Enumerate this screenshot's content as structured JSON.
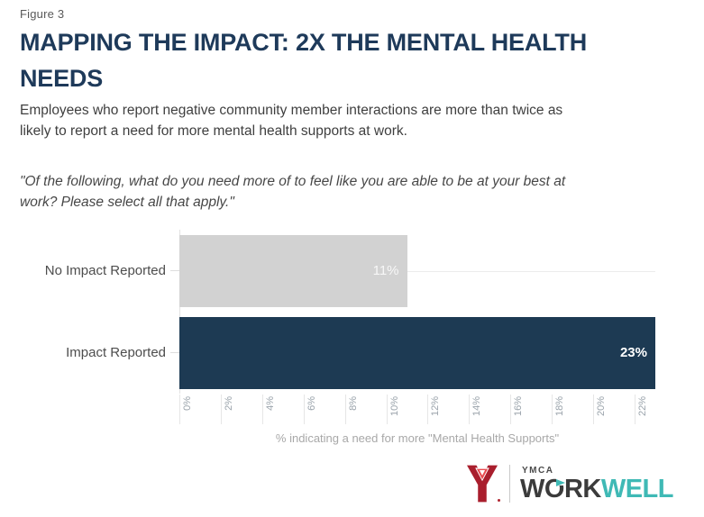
{
  "header": {
    "figure_label": "Figure 3",
    "title": "MAPPING THE IMPACT: 2X THE MENTAL HEALTH\nNEEDS",
    "subtitle": "Employees who report negative community member interactions are more than twice as\nlikely to report a need for more mental health supports at work.",
    "survey_question": "\"Of the following, what do you need more of to feel like you are able to be at your best at\nwork? Please select all that apply.\""
  },
  "chart_data": {
    "type": "bar",
    "orientation": "horizontal",
    "categories": [
      "No Impact Reported",
      "Impact Reported"
    ],
    "values": [
      11,
      23
    ],
    "bars": [
      {
        "category": "No Impact Reported",
        "value": 11,
        "label": "11%",
        "color": "#d2d2d2",
        "label_color": "#f7f7f7",
        "bold": false
      },
      {
        "category": "Impact Reported",
        "value": 23,
        "label": "23%",
        "color": "#1d3a53",
        "label_color": "#ffffff",
        "bold": true
      }
    ],
    "xlabel": "% indicating a need for more \"Mental Health Supports\"",
    "xlim": [
      0,
      23
    ],
    "xticks": [
      "0%",
      "2%",
      "4%",
      "6%",
      "8%",
      "10%",
      "12%",
      "14%",
      "16%",
      "18%",
      "20%",
      "22%"
    ],
    "xtick_values": [
      0,
      2,
      4,
      6,
      8,
      10,
      12,
      14,
      16,
      18,
      20,
      22
    ],
    "grid": "category gridlines + zero axis line",
    "legend": "none"
  },
  "logo": {
    "ymca_small": "YMCA",
    "work": "WORK",
    "well": "WELL",
    "colors": {
      "red_dark": "#a91e2d",
      "red_light": "#e94b50",
      "teal": "#3fb9b5",
      "charcoal": "#3b3b3b"
    }
  },
  "colors": {
    "title_navy": "#1e3a5a",
    "bar_navy": "#1d3a53",
    "bar_gray": "#d2d2d2",
    "axis_text": "#9aa3ab",
    "gridline": "#ececec"
  }
}
